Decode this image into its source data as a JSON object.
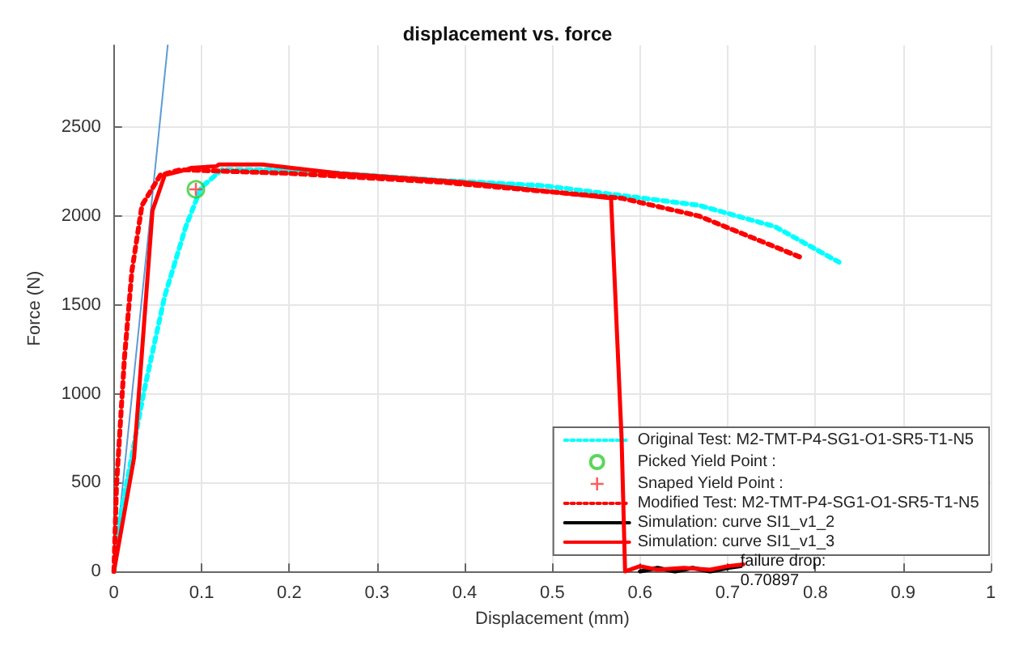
{
  "chart_data": {
    "type": "line",
    "title": "displacement vs. force",
    "xlabel": "Displacement (mm)",
    "ylabel": "Force (N)",
    "xlim": [
      0,
      1
    ],
    "xticks": [
      0,
      0.1,
      0.2,
      0.3,
      0.4,
      0.5,
      0.6,
      0.7,
      0.8,
      0.9,
      1
    ],
    "ylim": [
      0,
      2960
    ],
    "yticks": [
      0,
      500,
      1000,
      1500,
      2000,
      2500
    ],
    "grid": true,
    "legend": "bottom right",
    "annotations": [
      {
        "text": "failure drop:",
        "x": 0.709,
        "y": 0
      },
      {
        "text": "0.70897",
        "x": 0.709,
        "y": 0
      }
    ],
    "series": [
      {
        "color": "#5b9bd5",
        "x": [
          0,
          0.0614
        ],
        "values": [
          0,
          2960
        ],
        "line_style": "solid",
        "marker": "none"
      },
      {
        "name": "Original Test: M2-TMT-P4-SG1-O1-SR5-T1-N5",
        "color": "#00ffff",
        "line_style": "dotted",
        "marker": "none",
        "x": [
          0,
          0.0058,
          0.035,
          0.058,
          0.082,
          0.0995,
          0.123,
          0.199,
          0.374,
          0.491,
          0.667,
          0.754,
          0.827
        ],
        "values": [
          0,
          270,
          1030,
          1550,
          1940,
          2160,
          2260,
          2260,
          2200,
          2170,
          2060,
          1940,
          1740
        ]
      },
      {
        "type": "scatter",
        "name": "Picked Yield Point :",
        "color": "#33cc33",
        "marker": "circle",
        "x": [
          0.0935
        ],
        "values": [
          2150
        ]
      },
      {
        "type": "scatter",
        "name": "Snaped Yield Point :",
        "color": "#ff3333",
        "marker": "cross",
        "x": [
          0.0935
        ],
        "values": [
          2150
        ]
      },
      {
        "name": "Modified Test: M2-TMT-P4-SG1-O1-SR5-T1-N5",
        "color": "#ff0000",
        "line_style": "dotted",
        "marker": "none",
        "x": [
          0,
          0.003,
          0.012,
          0.0205,
          0.032,
          0.053,
          0.076,
          0.199,
          0.374,
          0.579,
          0.667,
          0.787
        ],
        "values": [
          0,
          490,
          1200,
          1690,
          2060,
          2230,
          2260,
          2240,
          2190,
          2100,
          2000,
          1760
        ]
      },
      {
        "name": "Simulation: curve SI1_v1_2",
        "color": "#000000",
        "line_style": "solid",
        "marker": "none",
        "x": [
          0.6,
          0.62,
          0.64,
          0.66,
          0.68,
          0.7,
          0.715
        ],
        "values": [
          0,
          20,
          0,
          20,
          0,
          20,
          30
        ]
      },
      {
        "name": "Simulation: curve SI1_v1_3",
        "color": "#ff0000",
        "line_style": "solid",
        "marker": "none",
        "x": [
          0,
          0.023,
          0.044,
          0.058,
          0.082,
          0.0877,
          0.117,
          0.12,
          0.169,
          0.257,
          0.398,
          0.491,
          0.567,
          0.579,
          0.583,
          0.6,
          0.62,
          0.65,
          0.68,
          0.7,
          0.718
        ],
        "values": [
          0,
          640,
          2030,
          2230,
          2260,
          2270,
          2280,
          2290,
          2290,
          2240,
          2190,
          2140,
          2100,
          750,
          0,
          30,
          10,
          20,
          10,
          30,
          40
        ]
      }
    ]
  }
}
